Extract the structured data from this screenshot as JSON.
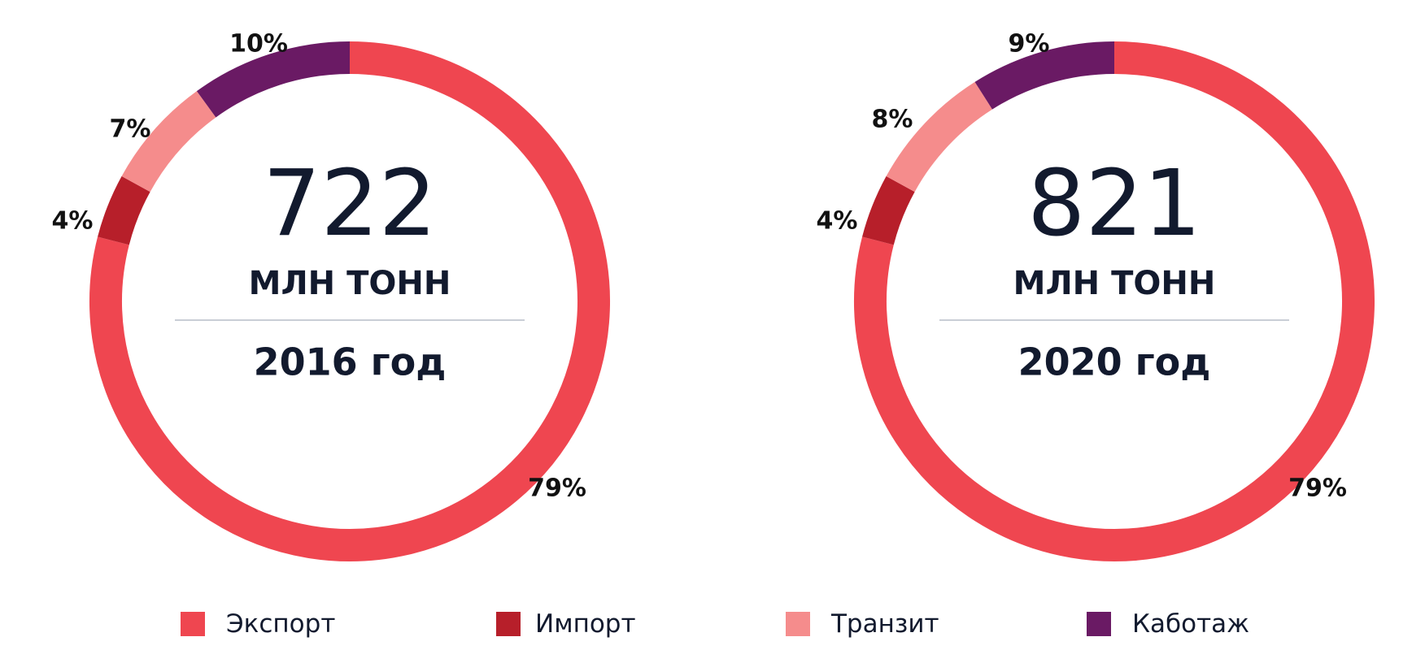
{
  "chart_data": [
    {
      "type": "pie",
      "center_value": "722",
      "unit": "МЛН ТОНН",
      "year_label": "2016 год",
      "categories": [
        "Экспорт",
        "Импорт",
        "Транзит",
        "Каботаж"
      ],
      "values": [
        79,
        4,
        7,
        10
      ],
      "labels": [
        "79%",
        "4%",
        "7%",
        "10%"
      ]
    },
    {
      "type": "pie",
      "center_value": "821",
      "unit": "МЛН ТОНН",
      "year_label": "2020 год",
      "categories": [
        "Экспорт",
        "Импорт",
        "Транзит",
        "Каботаж"
      ],
      "values": [
        79,
        4,
        8,
        9
      ],
      "labels": [
        "79%",
        "4%",
        "8%",
        "9%"
      ]
    }
  ],
  "legend": [
    {
      "label": "Экспорт",
      "color": "#ef4650"
    },
    {
      "label": "Импорт",
      "color": "#b71f2a"
    },
    {
      "label": "Транзит",
      "color": "#f58c8c"
    },
    {
      "label": "Каботаж",
      "color": "#6a1a64"
    }
  ],
  "colors": {
    "Экспорт": "#ef4650",
    "Импорт": "#b71f2a",
    "Транзит": "#f58c8c",
    "Каботаж": "#6a1a64",
    "divider": "#c9ced6",
    "text": "#121a2e"
  }
}
